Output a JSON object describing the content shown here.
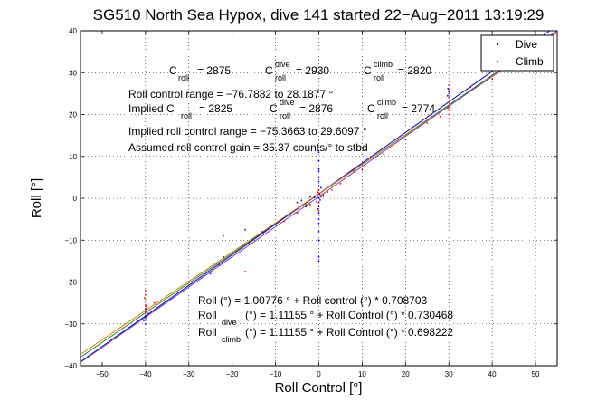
{
  "colors": {
    "dive": "#0000ff",
    "climb": "#ff0000",
    "fit_overall": "#1a8f2a",
    "fit_dive": "#0000cc",
    "fit_climb": "#e07a00",
    "one_to_one": "#7f3fbf"
  },
  "chart_data": {
    "type": "scatter",
    "title": "SG510 North Sea Hypox, dive 141 started 22−Aug−2011 13:19:29",
    "xlabel": "Roll Control [°]",
    "ylabel": "Roll [°]",
    "xlim": [
      -55,
      55
    ],
    "ylim": [
      -40,
      40
    ],
    "xticks": [
      -50,
      -40,
      -30,
      -20,
      -10,
      0,
      10,
      20,
      30,
      40,
      50
    ],
    "yticks": [
      -40,
      -30,
      -20,
      -10,
      0,
      10,
      20,
      30,
      40
    ],
    "xtick_labels": [
      "−50",
      "−40",
      "−30",
      "−20",
      "−10",
      "0",
      "10",
      "20",
      "30",
      "40",
      "50"
    ],
    "ytick_labels": [
      "−40",
      "−30",
      "−20",
      "−10",
      "0",
      "10",
      "20",
      "30",
      "40"
    ],
    "grid": true,
    "legend_position": "top-right",
    "legend": [
      {
        "label": "Dive",
        "color": "#0000ff"
      },
      {
        "label": "Climb",
        "color": "#ff0000"
      }
    ],
    "series": [
      {
        "name": "Dive",
        "color": "#0000ff",
        "points": [
          [
            -40,
            -27
          ],
          [
            -40,
            -28
          ],
          [
            -40,
            -29
          ],
          [
            -40,
            -30
          ],
          [
            -40,
            -26.5
          ],
          [
            -40,
            -28.5
          ],
          [
            -39.6,
            -27.5
          ],
          [
            -40.4,
            -29.2
          ],
          [
            -25,
            -18
          ],
          [
            -22,
            -14
          ],
          [
            -17,
            -7.5
          ],
          [
            -13,
            -8
          ],
          [
            -5,
            -1
          ],
          [
            -4,
            -0.5
          ],
          [
            -3,
            -2
          ],
          [
            -2,
            0.3
          ],
          [
            -1,
            0.2
          ],
          [
            -0.5,
            -0.8
          ],
          [
            0,
            0
          ],
          [
            0,
            3
          ],
          [
            0,
            5
          ],
          [
            0,
            7
          ],
          [
            0,
            9
          ],
          [
            0,
            11
          ],
          [
            0,
            6.5
          ],
          [
            0,
            4
          ],
          [
            0,
            2
          ],
          [
            0,
            -2
          ],
          [
            0,
            -3.5
          ],
          [
            0,
            -5
          ],
          [
            0,
            -6
          ],
          [
            0,
            -8
          ],
          [
            0,
            -10
          ],
          [
            0,
            -14
          ],
          [
            0,
            -15
          ],
          [
            0,
            -1
          ],
          [
            0.2,
            1
          ],
          [
            0.3,
            -0.4
          ],
          [
            0.5,
            2.5
          ],
          [
            1,
            0.5
          ],
          [
            -0.2,
            -2.6
          ],
          [
            -0.3,
            1.5
          ],
          [
            29.7,
            24.5
          ],
          [
            30,
            25.5
          ],
          [
            30,
            23
          ],
          [
            29.8,
            26.2
          ],
          [
            55,
            40
          ]
        ]
      },
      {
        "name": "Climb",
        "color": "#ff0000",
        "points": [
          [
            -40,
            -22
          ],
          [
            -40,
            -23
          ],
          [
            -40,
            -24.5
          ],
          [
            -40,
            -25.5
          ],
          [
            -40,
            -26.3
          ],
          [
            -40,
            -27.2
          ],
          [
            -39.8,
            -25.8
          ],
          [
            -40.2,
            -23.8
          ],
          [
            -38,
            -25
          ],
          [
            -30,
            -20
          ],
          [
            -23,
            -16
          ],
          [
            -22,
            -9
          ],
          [
            -17,
            -17.5
          ],
          [
            -13,
            -8.5
          ],
          [
            -8,
            -5.5
          ],
          [
            -5,
            -3.5
          ],
          [
            -3,
            -1.5
          ],
          [
            -2,
            -1.5
          ],
          [
            -1,
            0.5
          ],
          [
            0,
            2
          ],
          [
            0,
            -1
          ],
          [
            0,
            -3
          ],
          [
            0,
            1.2
          ],
          [
            0.5,
            0.3
          ],
          [
            1,
            0.8
          ],
          [
            2,
            1.5
          ],
          [
            3,
            2
          ],
          [
            5,
            3.5
          ],
          [
            8,
            6.5
          ],
          [
            10,
            6.8
          ],
          [
            15,
            10.5
          ],
          [
            20,
            14
          ],
          [
            25,
            18
          ],
          [
            28,
            19.5
          ],
          [
            30,
            20
          ],
          [
            30,
            21
          ],
          [
            30,
            22
          ],
          [
            30,
            23
          ],
          [
            30,
            24
          ],
          [
            30,
            25
          ],
          [
            30,
            26
          ],
          [
            30,
            27
          ],
          [
            29.8,
            21.5
          ],
          [
            30.2,
            24.5
          ],
          [
            35,
            26.5
          ],
          [
            40,
            28.5
          ]
        ]
      }
    ],
    "fit_lines": [
      {
        "name": "overall",
        "slope": 0.708703,
        "intercept": 1.00776,
        "color": "#1a8f2a"
      },
      {
        "name": "dive",
        "slope": 0.730468,
        "intercept": 1.11155,
        "color": "#0000cc"
      },
      {
        "name": "climb",
        "slope": 0.698222,
        "intercept": 1.11155,
        "color": "#e07a00"
      },
      {
        "name": "one-to-one",
        "slope": 0.72,
        "intercept": 0.4,
        "color": "#7f3fbf"
      }
    ],
    "annotations": {
      "c_roll": "= 2875",
      "c_roll_dive": "= 2930",
      "c_roll_climb": "= 2820",
      "roll_control_range": "Roll control range = −76.7882 to 28.1877 °",
      "implied_c_roll": "= 2825",
      "implied_c_roll_dive": "= 2876",
      "implied_c_roll_climb": "= 2774",
      "implied_range": "Implied roll control range = −75.3663 to 29.6097 °",
      "gain": "Assumed roll control gain = 35.37 counts/° to stbd",
      "eq_overall": "Roll (°) = 1.00776 ° + Roll control (°) * 0.708703",
      "eq_dive": "(°) = 1.11155 ° + Roll Control (°) * 0.730468",
      "eq_climb": "(°) = 1.11155 ° + Roll Control (°) * 0.698222"
    },
    "labels": {
      "C": "C",
      "Roll": "Roll",
      "Implied_C": "Implied C",
      "sub_roll": "roll",
      "sup_dive": "dive",
      "sup_climb": "climb",
      "sub_dive": "dive",
      "sub_climb": "climb"
    }
  }
}
